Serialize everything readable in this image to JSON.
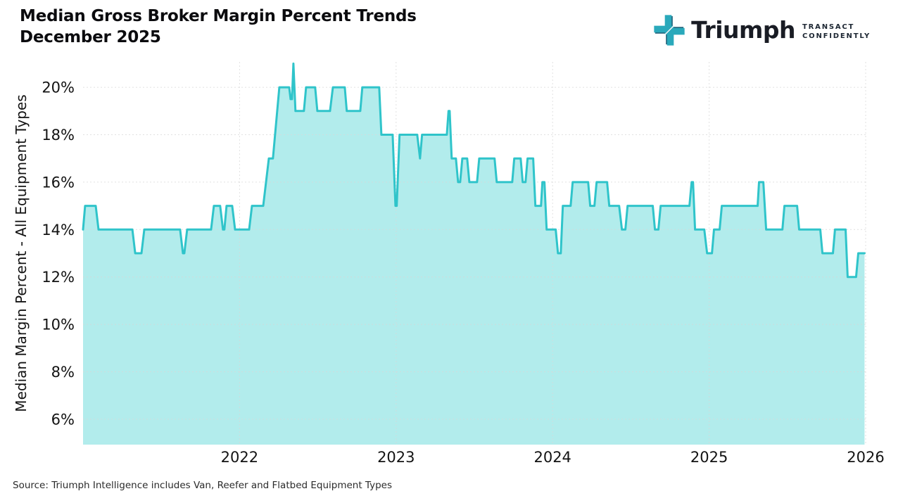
{
  "header": {
    "title_line1": "Median Gross Broker Margin Percent Trends",
    "title_line2": "December 2025",
    "logo": {
      "icon": "triumph-cross-icon",
      "name": "Triumph",
      "tagline_line1": "TRANSACT",
      "tagline_line2": "CONFIDENTLY"
    }
  },
  "footer": {
    "source": "Source: Triumph Intelligence includes Van, Reefer and Flatbed Equipment Types"
  },
  "colors": {
    "line": "#2fc4ca",
    "fill": "#b2ecec",
    "grid": "#d8d8d8",
    "tick_text": "#131313",
    "logo_teal": "#2aa9bb",
    "logo_navy": "#1e5b73"
  },
  "chart_data": {
    "type": "area",
    "title": "Median Gross Broker Margin Percent Trends December 2025",
    "xlabel": "",
    "ylabel": "Median Margin Percent - All Equipment Types",
    "legend_position": "none",
    "grid": true,
    "xlim": [
      2021.0,
      2026.0
    ],
    "ylim": [
      4.93,
      21.07
    ],
    "x_ticks": [
      2022,
      2023,
      2024,
      2025,
      2026
    ],
    "y_ticks": [
      6,
      8,
      10,
      12,
      14,
      16,
      18,
      20
    ],
    "y_tick_suffix": "%",
    "points": [
      [
        2021.0,
        14
      ],
      [
        2021.013,
        15
      ],
      [
        2021.081,
        15
      ],
      [
        2021.099,
        14
      ],
      [
        2021.315,
        14
      ],
      [
        2021.333,
        13
      ],
      [
        2021.373,
        13
      ],
      [
        2021.391,
        14
      ],
      [
        2021.62,
        14
      ],
      [
        2021.638,
        13
      ],
      [
        2021.647,
        13
      ],
      [
        2021.665,
        14
      ],
      [
        2021.818,
        14
      ],
      [
        2021.836,
        15
      ],
      [
        2021.876,
        15
      ],
      [
        2021.894,
        14
      ],
      [
        2021.903,
        14
      ],
      [
        2021.917,
        15
      ],
      [
        2021.953,
        15
      ],
      [
        2021.971,
        14
      ],
      [
        2022.061,
        14
      ],
      [
        2022.079,
        15
      ],
      [
        2022.151,
        15
      ],
      [
        2022.187,
        17
      ],
      [
        2022.213,
        17
      ],
      [
        2022.254,
        20
      ],
      [
        2022.317,
        20
      ],
      [
        2022.326,
        19.5
      ],
      [
        2022.335,
        19.5
      ],
      [
        2022.344,
        21
      ],
      [
        2022.357,
        19
      ],
      [
        2022.411,
        19
      ],
      [
        2022.425,
        20
      ],
      [
        2022.483,
        20
      ],
      [
        2022.497,
        19
      ],
      [
        2022.578,
        19
      ],
      [
        2022.596,
        20
      ],
      [
        2022.672,
        20
      ],
      [
        2022.685,
        19
      ],
      [
        2022.771,
        19
      ],
      [
        2022.784,
        20
      ],
      [
        2022.892,
        20
      ],
      [
        2022.906,
        18
      ],
      [
        2022.978,
        18
      ],
      [
        2022.996,
        15
      ],
      [
        2023.004,
        15
      ],
      [
        2023.022,
        18
      ],
      [
        2023.135,
        18
      ],
      [
        2023.153,
        17
      ],
      [
        2023.166,
        18
      ],
      [
        2023.324,
        18
      ],
      [
        2023.335,
        19
      ],
      [
        2023.342,
        19
      ],
      [
        2023.355,
        17
      ],
      [
        2023.382,
        17
      ],
      [
        2023.396,
        16
      ],
      [
        2023.409,
        16
      ],
      [
        2023.423,
        17
      ],
      [
        2023.454,
        17
      ],
      [
        2023.468,
        16
      ],
      [
        2023.517,
        16
      ],
      [
        2023.531,
        17
      ],
      [
        2023.629,
        17
      ],
      [
        2023.643,
        16
      ],
      [
        2023.742,
        16
      ],
      [
        2023.755,
        17
      ],
      [
        2023.796,
        17
      ],
      [
        2023.809,
        16
      ],
      [
        2023.827,
        16
      ],
      [
        2023.84,
        17
      ],
      [
        2023.876,
        17
      ],
      [
        2023.89,
        15
      ],
      [
        2023.926,
        15
      ],
      [
        2023.935,
        16
      ],
      [
        2023.948,
        16
      ],
      [
        2023.962,
        14
      ],
      [
        2024.02,
        14
      ],
      [
        2024.034,
        13
      ],
      [
        2024.052,
        13
      ],
      [
        2024.065,
        15
      ],
      [
        2024.115,
        15
      ],
      [
        2024.128,
        16
      ],
      [
        2024.227,
        16
      ],
      [
        2024.24,
        15
      ],
      [
        2024.267,
        15
      ],
      [
        2024.281,
        16
      ],
      [
        2024.348,
        16
      ],
      [
        2024.362,
        15
      ],
      [
        2024.425,
        15
      ],
      [
        2024.443,
        14
      ],
      [
        2024.465,
        14
      ],
      [
        2024.479,
        15
      ],
      [
        2024.64,
        15
      ],
      [
        2024.654,
        14
      ],
      [
        2024.676,
        14
      ],
      [
        2024.69,
        15
      ],
      [
        2024.874,
        15
      ],
      [
        2024.888,
        16
      ],
      [
        2024.897,
        16
      ],
      [
        2024.91,
        14
      ],
      [
        2024.969,
        14
      ],
      [
        2024.987,
        13
      ],
      [
        2025.018,
        13
      ],
      [
        2025.031,
        14
      ],
      [
        2025.067,
        14
      ],
      [
        2025.081,
        15
      ],
      [
        2025.31,
        15
      ],
      [
        2025.319,
        16
      ],
      [
        2025.346,
        16
      ],
      [
        2025.364,
        14
      ],
      [
        2025.468,
        14
      ],
      [
        2025.481,
        15
      ],
      [
        2025.562,
        15
      ],
      [
        2025.575,
        14
      ],
      [
        2025.71,
        14
      ],
      [
        2025.724,
        13
      ],
      [
        2025.791,
        13
      ],
      [
        2025.804,
        14
      ],
      [
        2025.872,
        14
      ],
      [
        2025.885,
        12
      ],
      [
        2025.939,
        12
      ],
      [
        2025.953,
        13
      ],
      [
        2025.993,
        13
      ]
    ]
  }
}
